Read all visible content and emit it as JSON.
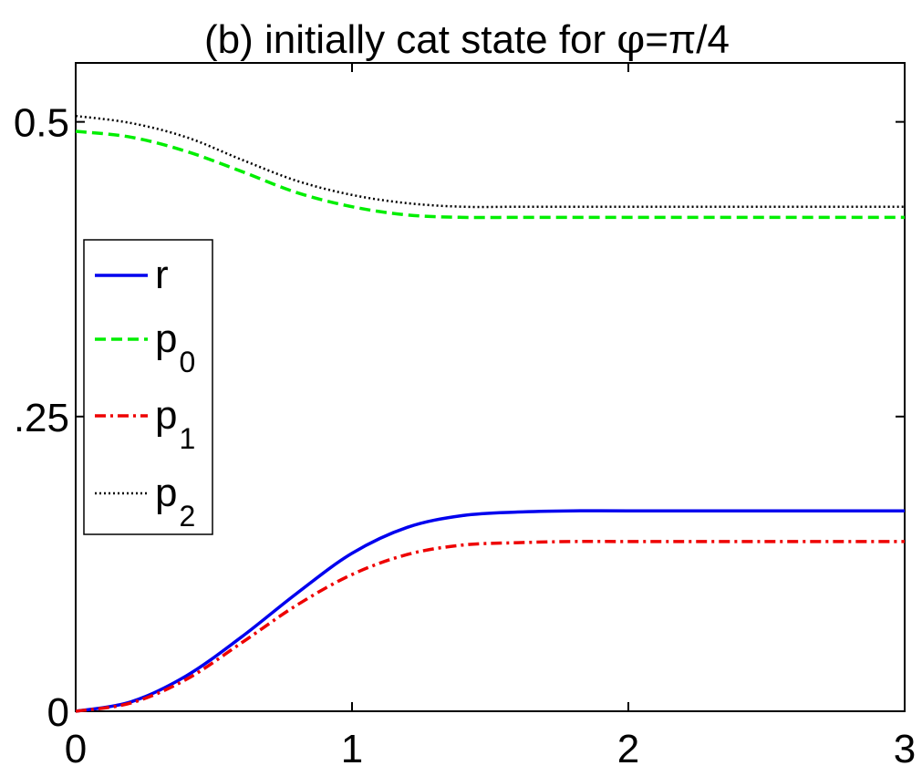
{
  "chart_data": {
    "type": "line",
    "title_prefix": "(b)  initially cat state for ",
    "title_phi": "φ",
    "title_suffix": "=π/4",
    "xlabel": "",
    "ylabel": "",
    "xlim": [
      0,
      3
    ],
    "ylim": [
      0,
      0.55
    ],
    "xticks": [
      0,
      1,
      2,
      3
    ],
    "xtick_labels": [
      "0",
      "1",
      "2",
      "3"
    ],
    "yticks": [
      0,
      0.25,
      0.5
    ],
    "ytick_labels": [
      "0",
      ".25",
      "0.5"
    ],
    "grid": false,
    "legend_placement": "left-middle",
    "x": [
      0,
      0.2,
      0.4,
      0.6,
      0.8,
      1.0,
      1.2,
      1.4,
      1.6,
      1.8,
      2.0,
      2.5,
      3.0
    ],
    "series": [
      {
        "name": "r",
        "name_sub": "",
        "color": "#0000ee",
        "style": "solid",
        "values": [
          0.0,
          0.008,
          0.03,
          0.063,
          0.1,
          0.134,
          0.156,
          0.166,
          0.169,
          0.17,
          0.17,
          0.17,
          0.17
        ]
      },
      {
        "name": "p",
        "name_sub": "0",
        "color": "#00ee00",
        "style": "dashed",
        "values": [
          0.492,
          0.487,
          0.475,
          0.458,
          0.44,
          0.428,
          0.421,
          0.419,
          0.419,
          0.419,
          0.419,
          0.419,
          0.419
        ]
      },
      {
        "name": "p",
        "name_sub": "1",
        "color": "#ee0000",
        "style": "dashdot",
        "values": [
          0.0,
          0.007,
          0.027,
          0.058,
          0.09,
          0.116,
          0.133,
          0.141,
          0.143,
          0.144,
          0.144,
          0.144,
          0.144
        ]
      },
      {
        "name": "p",
        "name_sub": "2",
        "color": "#000000",
        "style": "dotted",
        "values": [
          0.505,
          0.499,
          0.487,
          0.468,
          0.45,
          0.438,
          0.431,
          0.428,
          0.428,
          0.428,
          0.428,
          0.428,
          0.428
        ]
      }
    ]
  }
}
